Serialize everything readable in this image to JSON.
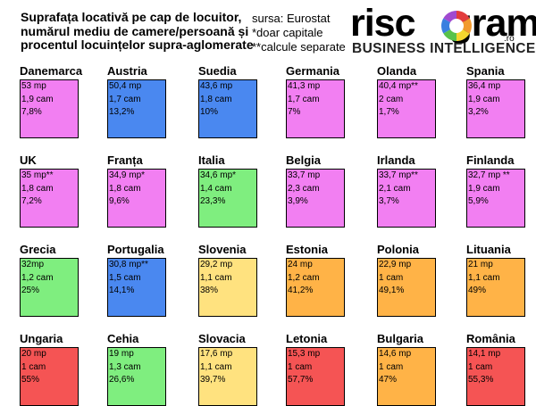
{
  "header": {
    "title_lines": [
      "Suprafața locativă pe cap de locuitor,",
      "numărul mediu de camere/persoană și",
      "procentul locuințelor supra-aglomerate"
    ],
    "source_lines": [
      "sursa: Eurostat",
      "*doar capitale",
      "**calcule separate"
    ]
  },
  "logo": {
    "word_start": "risc",
    "word_end": "grama",
    "suffix": ".ro",
    "tagline": "BUSINESS INTELLIGENCE"
  },
  "colors": {
    "magenta": "#f27ff2",
    "blue": "#4a88f0",
    "green": "#7fee7f",
    "yellow": "#ffe27f",
    "orange": "#ffb347",
    "red": "#f55454"
  },
  "chart_data": {
    "type": "table",
    "fields": [
      "name",
      "area_text",
      "rooms_text",
      "overcrowded_text"
    ],
    "values_numeric_fields": [
      "area_m2",
      "rooms_per_person",
      "overcrowded_pct"
    ],
    "countries": [
      {
        "name": "Danemarca",
        "area_text": "53 mp",
        "rooms_text": "1,9 cam",
        "overcrowded_text": "7,8%",
        "area_m2": 53,
        "rooms_per_person": 1.9,
        "overcrowded_pct": 7.8,
        "color": "magenta"
      },
      {
        "name": "Austria",
        "area_text": "50,4 mp",
        "rooms_text": "1,7 cam",
        "overcrowded_text": "13,2%",
        "area_m2": 50.4,
        "rooms_per_person": 1.7,
        "overcrowded_pct": 13.2,
        "color": "blue"
      },
      {
        "name": "Suedia",
        "area_text": "43,6 mp",
        "rooms_text": "1,8 cam",
        "overcrowded_text": "10%",
        "area_m2": 43.6,
        "rooms_per_person": 1.8,
        "overcrowded_pct": 10,
        "color": "blue"
      },
      {
        "name": "Germania",
        "area_text": "41,3 mp",
        "rooms_text": "1,7 cam",
        "overcrowded_text": "7%",
        "area_m2": 41.3,
        "rooms_per_person": 1.7,
        "overcrowded_pct": 7,
        "color": "magenta"
      },
      {
        "name": "Olanda",
        "area_text": "40,4 mp**",
        "rooms_text": "2 cam",
        "overcrowded_text": "1,7%",
        "area_m2": 40.4,
        "rooms_per_person": 2,
        "overcrowded_pct": 1.7,
        "color": "magenta"
      },
      {
        "name": "Spania",
        "area_text": "36,4 mp",
        "rooms_text": "1,9 cam",
        "overcrowded_text": "3,2%",
        "area_m2": 36.4,
        "rooms_per_person": 1.9,
        "overcrowded_pct": 3.2,
        "color": "magenta"
      },
      {
        "name": "UK",
        "area_text": "35 mp**",
        "rooms_text": "1,8 cam",
        "overcrowded_text": "7,2%",
        "area_m2": 35,
        "rooms_per_person": 1.8,
        "overcrowded_pct": 7.2,
        "color": "magenta"
      },
      {
        "name": "Franța",
        "area_text": "34,9 mp*",
        "rooms_text": "1,8 cam",
        "overcrowded_text": "9,6%",
        "area_m2": 34.9,
        "rooms_per_person": 1.8,
        "overcrowded_pct": 9.6,
        "color": "magenta"
      },
      {
        "name": "Italia",
        "area_text": "34,6 mp*",
        "rooms_text": "1,4 cam",
        "overcrowded_text": "23,3%",
        "area_m2": 34.6,
        "rooms_per_person": 1.4,
        "overcrowded_pct": 23.3,
        "color": "green"
      },
      {
        "name": "Belgia",
        "area_text": "33,7 mp",
        "rooms_text": "2,3 cam",
        "overcrowded_text": "3,9%",
        "area_m2": 33.7,
        "rooms_per_person": 2.3,
        "overcrowded_pct": 3.9,
        "color": "magenta"
      },
      {
        "name": "Irlanda",
        "area_text": "33,7 mp**",
        "rooms_text": "2,1 cam",
        "overcrowded_text": "3,7%",
        "area_m2": 33.7,
        "rooms_per_person": 2.1,
        "overcrowded_pct": 3.7,
        "color": "magenta"
      },
      {
        "name": "Finlanda",
        "area_text": "32,7 mp **",
        "rooms_text": "1,9 cam",
        "overcrowded_text": "5,9%",
        "area_m2": 32.7,
        "rooms_per_person": 1.9,
        "overcrowded_pct": 5.9,
        "color": "magenta"
      },
      {
        "name": "Grecia",
        "area_text": "32mp",
        "rooms_text": "1,2 cam",
        "overcrowded_text": "25%",
        "area_m2": 32,
        "rooms_per_person": 1.2,
        "overcrowded_pct": 25,
        "color": "green"
      },
      {
        "name": "Portugalia",
        "area_text": "30,8 mp**",
        "rooms_text": "1,5 cam",
        "overcrowded_text": "14,1%",
        "area_m2": 30.8,
        "rooms_per_person": 1.5,
        "overcrowded_pct": 14.1,
        "color": "blue"
      },
      {
        "name": "Slovenia",
        "area_text": "29,2 mp",
        "rooms_text": "1,1 cam",
        "overcrowded_text": "38%",
        "area_m2": 29.2,
        "rooms_per_person": 1.1,
        "overcrowded_pct": 38,
        "color": "yellow"
      },
      {
        "name": "Estonia",
        "area_text": "24 mp",
        "rooms_text": "1,2 cam",
        "overcrowded_text": "41,2%",
        "area_m2": 24,
        "rooms_per_person": 1.2,
        "overcrowded_pct": 41.2,
        "color": "orange"
      },
      {
        "name": "Polonia",
        "area_text": "22,9 mp",
        "rooms_text": "1 cam",
        "overcrowded_text": "49,1%",
        "area_m2": 22.9,
        "rooms_per_person": 1,
        "overcrowded_pct": 49.1,
        "color": "orange"
      },
      {
        "name": "Lituania",
        "area_text": "21 mp",
        "rooms_text": "1,1 cam",
        "overcrowded_text": "49%",
        "area_m2": 21,
        "rooms_per_person": 1.1,
        "overcrowded_pct": 49,
        "color": "orange"
      },
      {
        "name": "Ungaria",
        "area_text": "20 mp",
        "rooms_text": "1 cam",
        "overcrowded_text": "55%",
        "area_m2": 20,
        "rooms_per_person": 1,
        "overcrowded_pct": 55,
        "color": "red"
      },
      {
        "name": "Cehia",
        "area_text": "19 mp",
        "rooms_text": "1,3 cam",
        "overcrowded_text": "26,6%",
        "area_m2": 19,
        "rooms_per_person": 1.3,
        "overcrowded_pct": 26.6,
        "color": "green"
      },
      {
        "name": "Slovacia",
        "area_text": "17,6 mp",
        "rooms_text": "1,1 cam",
        "overcrowded_text": "39,7%",
        "area_m2": 17.6,
        "rooms_per_person": 1.1,
        "overcrowded_pct": 39.7,
        "color": "yellow"
      },
      {
        "name": "Letonia",
        "area_text": "15,3 mp",
        "rooms_text": "1 cam",
        "overcrowded_text": "57,7%",
        "area_m2": 15.3,
        "rooms_per_person": 1,
        "overcrowded_pct": 57.7,
        "color": "red"
      },
      {
        "name": "Bulgaria",
        "area_text": "14,6 mp",
        "rooms_text": "1 cam",
        "overcrowded_text": "47%",
        "area_m2": 14.6,
        "rooms_per_person": 1,
        "overcrowded_pct": 47,
        "color": "orange"
      },
      {
        "name": "România",
        "area_text": "14,1 mp",
        "rooms_text": "1 cam",
        "overcrowded_text": "55,3%",
        "area_m2": 14.1,
        "rooms_per_person": 1,
        "overcrowded_pct": 55.3,
        "color": "red"
      }
    ]
  }
}
